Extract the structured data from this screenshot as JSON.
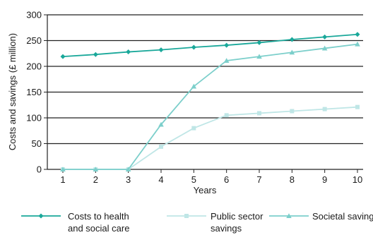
{
  "chart_data": {
    "type": "line",
    "categories": [
      "1",
      "2",
      "3",
      "4",
      "5",
      "6",
      "7",
      "8",
      "9",
      "10"
    ],
    "xlabel": "Years",
    "ylabel": "Costs and savings (£ million)",
    "ylim": [
      0,
      300
    ],
    "yticks": [
      "0",
      "50",
      "100",
      "150",
      "200",
      "250",
      "300"
    ],
    "grid": "horizontal",
    "legend_position": "bottom",
    "series": [
      {
        "name_lines": [
          "Costs to health",
          "and social care"
        ],
        "color": "#1aa89a",
        "marker": "diamond",
        "values": [
          219,
          223,
          228,
          232,
          237,
          241,
          246,
          252,
          257,
          262
        ]
      },
      {
        "name_lines": [
          "Public sector",
          "savings"
        ],
        "color": "#bfe6e6",
        "marker": "square",
        "values": [
          0,
          0,
          0,
          44,
          80,
          105,
          109,
          113,
          117,
          121
        ]
      },
      {
        "name_lines": [
          "Societal savings"
        ],
        "color": "#7ccfcb",
        "marker": "triangle",
        "values": [
          0,
          0,
          0,
          87,
          161,
          211,
          219,
          227,
          235,
          243
        ]
      }
    ]
  }
}
